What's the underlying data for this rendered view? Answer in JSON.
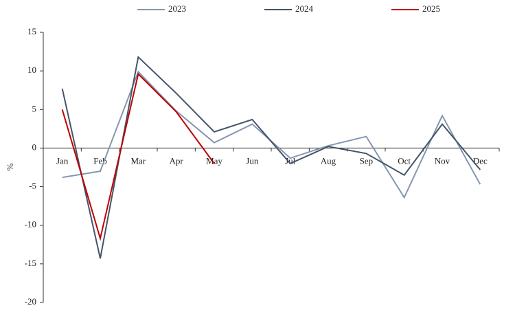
{
  "chart_data": {
    "type": "line",
    "y_label": "%",
    "categories": [
      "Jan",
      "Feb",
      "Mar",
      "Apr",
      "May",
      "Jun",
      "Jul",
      "Aug",
      "Sep",
      "Oct",
      "Nov",
      "Dec"
    ],
    "series": [
      {
        "name": "2023",
        "color": "#8497b0",
        "values": [
          -3.8,
          -3.0,
          9.9,
          4.8,
          0.7,
          3.1,
          -1.3,
          0.3,
          1.5,
          -6.4,
          4.2,
          -4.7
        ]
      },
      {
        "name": "2024",
        "color": "#44546a",
        "values": [
          7.7,
          -14.3,
          11.8,
          7.1,
          2.1,
          3.7,
          -2.0,
          0.2,
          -0.7,
          -3.5,
          3.1,
          -2.8
        ]
      },
      {
        "name": "2025",
        "color": "#c00000",
        "values": [
          5.0,
          -11.7,
          9.6,
          4.7,
          -2.0,
          null,
          null,
          null,
          null,
          null,
          null,
          null
        ]
      }
    ],
    "ylim": [
      -20,
      15
    ],
    "yticks": [
      -20,
      -15,
      -10,
      -5,
      0,
      5,
      10,
      15
    ],
    "legend": "top"
  }
}
